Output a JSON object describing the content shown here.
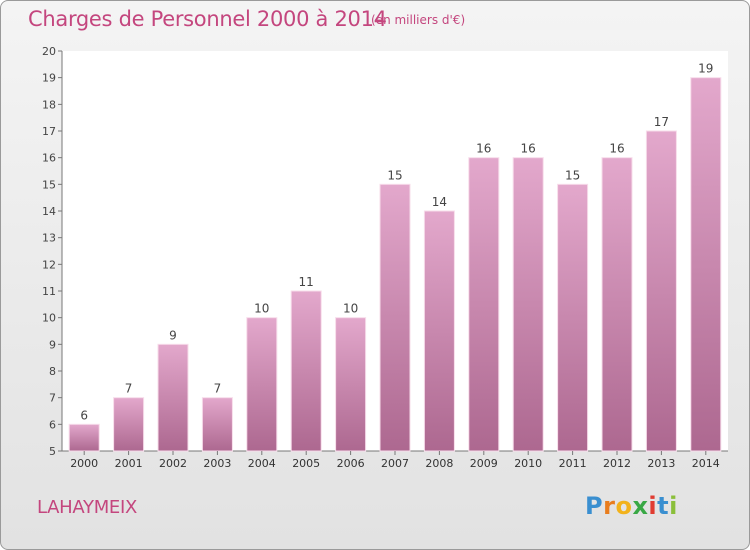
{
  "header": {
    "title": "Charges de Personnel 2000 à 2014",
    "subtitle": "(en milliers d'€)"
  },
  "footer": {
    "commune": "LAHAYMEIX",
    "logo": "Proxiti"
  },
  "colors": {
    "accent": "#c4467e",
    "bar_top": "#e3a8cc",
    "bar_bottom": "#ad6890"
  },
  "chart_data": {
    "type": "bar",
    "categories": [
      "2000",
      "2001",
      "2002",
      "2003",
      "2004",
      "2005",
      "2006",
      "2007",
      "2008",
      "2009",
      "2010",
      "2011",
      "2012",
      "2013",
      "2014"
    ],
    "values": [
      6,
      7,
      9,
      7,
      10,
      11,
      10,
      15,
      14,
      16,
      16,
      15,
      16,
      17,
      19
    ],
    "ylim": [
      5,
      20
    ],
    "yticks": [
      5,
      6,
      7,
      8,
      9,
      10,
      11,
      12,
      13,
      14,
      15,
      16,
      17,
      18,
      19,
      20
    ],
    "grid": false
  }
}
